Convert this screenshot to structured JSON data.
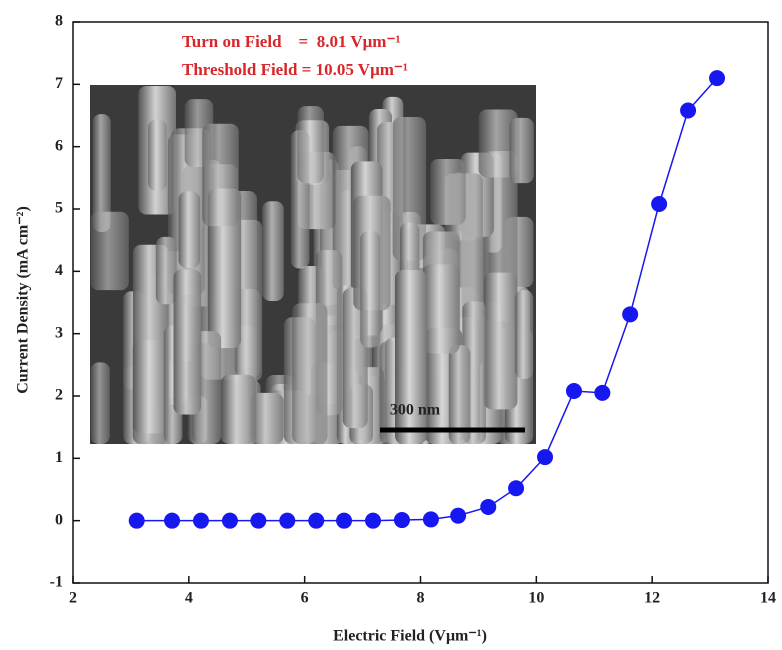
{
  "chart_data": {
    "type": "line",
    "x_label": "Electric Field  (Vμm⁻¹)",
    "y_label": "Current Density (mA cm⁻²)",
    "annotations": [
      "Turn on Field    =  8.01 Vμm⁻¹",
      "Threshold Field = 10.05 Vμm⁻¹"
    ],
    "inset_scale_label": "300 nm",
    "x": [
      3.1,
      3.71,
      4.21,
      4.71,
      5.2,
      5.7,
      6.2,
      6.68,
      7.18,
      7.68,
      8.18,
      8.65,
      9.17,
      9.65,
      10.15,
      10.65,
      11.14,
      11.62,
      12.12,
      12.62,
      13.12
    ],
    "values": [
      0,
      0,
      0,
      0,
      0,
      0,
      0,
      0,
      0,
      0.01,
      0.02,
      0.08,
      0.22,
      0.52,
      1.02,
      2.08,
      2.05,
      3.31,
      5.08,
      6.58,
      7.1
    ],
    "color": "#1717f0",
    "xlim": [
      2,
      14
    ],
    "xticks": [
      2,
      4,
      6,
      8,
      10,
      12,
      14
    ],
    "ylim": [
      -1,
      8
    ],
    "yticks": [
      -1,
      0,
      1,
      2,
      3,
      4,
      5,
      6,
      7,
      8
    ]
  }
}
